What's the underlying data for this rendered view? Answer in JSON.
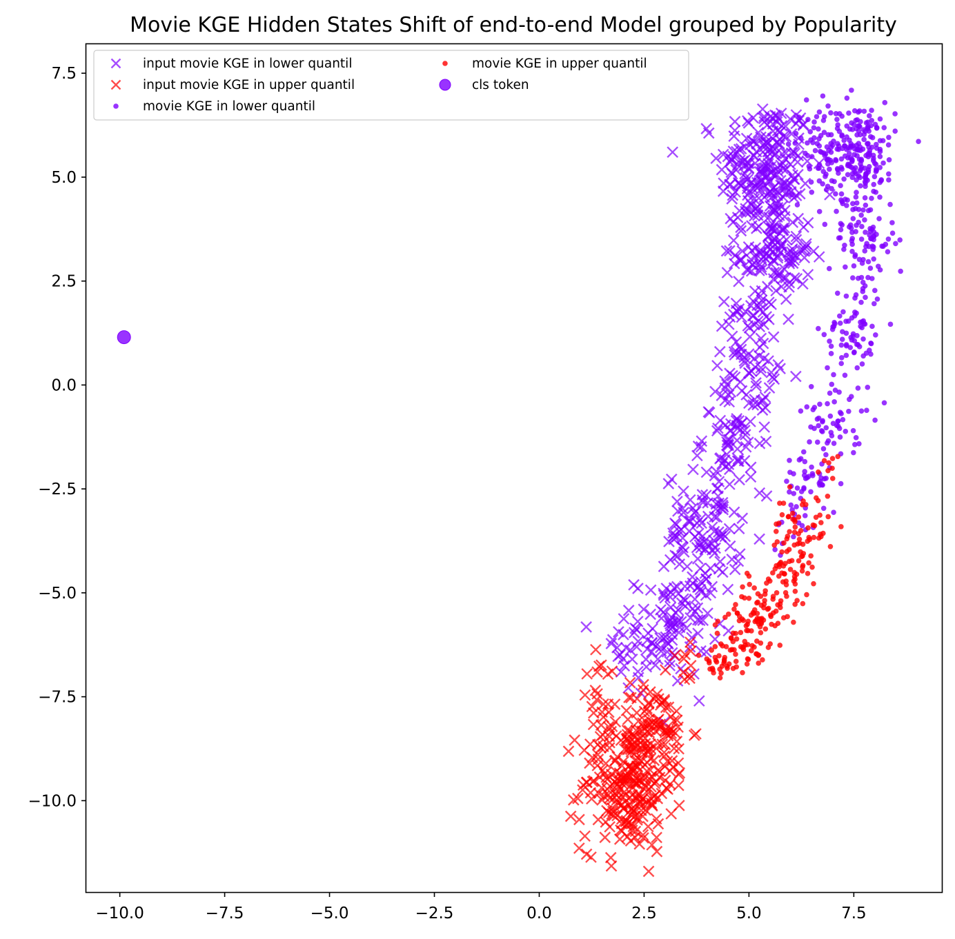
{
  "chart_data": {
    "type": "scatter",
    "title": "Movie KGE Hidden States Shift of end-to-end Model grouped by Popularity",
    "xlabel": "",
    "ylabel": "",
    "xlim": [
      -10.8,
      9.6
    ],
    "ylim": [
      -12.2,
      8.2
    ],
    "x_ticks": [
      -10.0,
      -7.5,
      -5.0,
      -2.5,
      0.0,
      2.5,
      5.0,
      7.5
    ],
    "y_ticks": [
      7.5,
      5.0,
      2.5,
      0.0,
      -2.5,
      -5.0,
      -7.5,
      -10.0
    ],
    "x_tick_labels": [
      "−10.0",
      "−7.5",
      "−5.0",
      "−2.5",
      "0.0",
      "2.5",
      "5.0",
      "7.5"
    ],
    "y_tick_labels": [
      "7.5",
      "5.0",
      "2.5",
      "0.0",
      "−2.5",
      "−5.0",
      "−7.5",
      "−10.0"
    ],
    "grid": false,
    "legend_placement": "top-left",
    "legend_columns": 2,
    "series": [
      {
        "name": "input movie KGE in lower quantil",
        "marker": "x",
        "color": "#8000ff",
        "alpha": 0.7,
        "clusters": [
          {
            "cx": 5.4,
            "cy": 5.2,
            "sx": 0.55,
            "sy": 0.85,
            "n": 220
          },
          {
            "cx": 5.6,
            "cy": 3.2,
            "sx": 0.45,
            "sy": 0.6,
            "n": 120
          },
          {
            "cx": 5.0,
            "cy": 1.0,
            "sx": 0.4,
            "sy": 0.7,
            "n": 70
          },
          {
            "cx": 4.7,
            "cy": -1.2,
            "sx": 0.4,
            "sy": 0.7,
            "n": 80
          },
          {
            "cx": 3.9,
            "cy": -3.6,
            "sx": 0.45,
            "sy": 0.75,
            "n": 110
          },
          {
            "cx": 3.2,
            "cy": -5.8,
            "sx": 0.45,
            "sy": 0.6,
            "n": 90
          },
          {
            "cx": 2.2,
            "cy": -6.5,
            "sx": 0.45,
            "sy": 0.6,
            "n": 25
          }
        ]
      },
      {
        "name": "input movie KGE in upper quantil",
        "marker": "x",
        "color": "#ff0000",
        "alpha": 0.7,
        "clusters": [
          {
            "cx": 2.1,
            "cy": -9.6,
            "sx": 0.55,
            "sy": 0.8,
            "n": 240
          },
          {
            "cx": 2.7,
            "cy": -8.3,
            "sx": 0.45,
            "sy": 0.55,
            "n": 90
          },
          {
            "cx": 1.5,
            "cy": -7.3,
            "sx": 0.25,
            "sy": 0.45,
            "n": 15
          },
          {
            "cx": 3.5,
            "cy": -6.6,
            "sx": 0.2,
            "sy": 0.3,
            "n": 10
          }
        ]
      },
      {
        "name": "movie KGE in lower quantil",
        "marker": "o",
        "color": "#8000ff",
        "alpha": 0.8,
        "clusters": [
          {
            "cx": 7.6,
            "cy": 5.6,
            "sx": 0.45,
            "sy": 0.6,
            "n": 200
          },
          {
            "cx": 6.9,
            "cy": 5.8,
            "sx": 0.5,
            "sy": 0.5,
            "n": 60
          },
          {
            "cx": 7.7,
            "cy": 3.5,
            "sx": 0.4,
            "sy": 0.6,
            "n": 90
          },
          {
            "cx": 7.5,
            "cy": 1.3,
            "sx": 0.35,
            "sy": 0.6,
            "n": 70
          },
          {
            "cx": 7.0,
            "cy": -0.8,
            "sx": 0.35,
            "sy": 0.55,
            "n": 60
          },
          {
            "cx": 6.5,
            "cy": -2.4,
            "sx": 0.35,
            "sy": 0.4,
            "n": 40
          },
          {
            "cx": 6.1,
            "cy": -3.3,
            "sx": 0.3,
            "sy": 0.3,
            "n": 15
          }
        ]
      },
      {
        "name": "movie KGE in upper quantil",
        "marker": "o",
        "color": "#ff0000",
        "alpha": 0.8,
        "clusters": [
          {
            "cx": 6.3,
            "cy": -3.4,
            "sx": 0.35,
            "sy": 0.4,
            "n": 50
          },
          {
            "cx": 5.9,
            "cy": -4.5,
            "sx": 0.3,
            "sy": 0.4,
            "n": 60
          },
          {
            "cx": 5.3,
            "cy": -5.4,
            "sx": 0.3,
            "sy": 0.35,
            "n": 50
          },
          {
            "cx": 4.8,
            "cy": -6.1,
            "sx": 0.3,
            "sy": 0.35,
            "n": 60
          },
          {
            "cx": 4.3,
            "cy": -6.7,
            "sx": 0.25,
            "sy": 0.3,
            "n": 25
          },
          {
            "cx": 6.9,
            "cy": -1.9,
            "sx": 0.2,
            "sy": 0.3,
            "n": 8
          }
        ]
      },
      {
        "name": "cls token",
        "marker": "O",
        "color": "#8000ff",
        "alpha": 0.8,
        "points": [
          [
            -9.9,
            1.15
          ]
        ]
      }
    ]
  }
}
